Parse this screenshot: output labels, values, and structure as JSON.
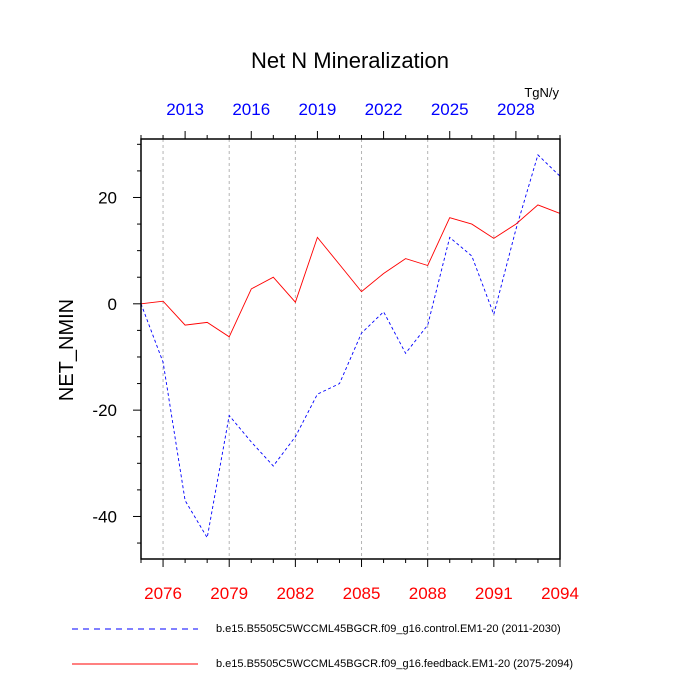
{
  "chart_data": {
    "type": "line",
    "title": "Net N Mineralization",
    "units": "TgN/y",
    "ylabel": "NET_NMIN",
    "ylim": [
      -48,
      31
    ],
    "yticks": [
      -40,
      -20,
      0,
      20
    ],
    "colors": {
      "control": "#0000ff",
      "feedback": "#ff0000"
    },
    "bottom_axis": {
      "range": [
        2075,
        2094
      ],
      "ticks": [
        2076,
        2079,
        2082,
        2085,
        2088,
        2091,
        2094
      ],
      "tick_labels": [
        "2076",
        "2079",
        "2082",
        "2085",
        "2088",
        "2091",
        "2094"
      ],
      "color": "#ff0000"
    },
    "top_axis": {
      "range": [
        2011,
        2030
      ],
      "ticks": [
        2013,
        2016,
        2019,
        2022,
        2025,
        2028
      ],
      "tick_labels": [
        "2013",
        "2016",
        "2019",
        "2022",
        "2025",
        "2028"
      ],
      "color": "#0000ff"
    },
    "series": [
      {
        "name": "control",
        "axis": "top",
        "style": "dashed",
        "color": "#0000ff",
        "x": [
          2011,
          2012,
          2013,
          2014,
          2015,
          2016,
          2017,
          2018,
          2019,
          2020,
          2021,
          2022,
          2023,
          2024,
          2025,
          2026,
          2027,
          2028,
          2029,
          2030
        ],
        "values": [
          0,
          -11,
          -37,
          -44,
          -21,
          -26,
          -30.5,
          -25,
          -17,
          -15,
          -5.5,
          -1.5,
          -9.3,
          -4,
          12.5,
          9,
          -2,
          14,
          28,
          24
        ]
      },
      {
        "name": "feedback",
        "axis": "bottom",
        "style": "solid",
        "color": "#ff0000",
        "x": [
          2075,
          2076,
          2077,
          2078,
          2079,
          2080,
          2081,
          2082,
          2083,
          2084,
          2085,
          2086,
          2087,
          2088,
          2089,
          2090,
          2091,
          2092,
          2093,
          2094
        ],
        "values": [
          0,
          0.5,
          -4,
          -3.5,
          -6.2,
          2.8,
          5,
          0.3,
          12.5,
          7.4,
          2.3,
          5.7,
          8.5,
          7.2,
          16.2,
          15,
          12.3,
          15,
          18.6,
          17
        ]
      }
    ],
    "legend": [
      {
        "series": "control",
        "label": "b.e15.B5505C5WCCML45BGCR.f09_g16.control.EM1-20 (2011-2030)"
      },
      {
        "series": "feedback",
        "label": "b.e15.B5505C5WCCML45BGCR.f09_g16.feedback.EM1-20 (2075-2094)"
      }
    ],
    "grid": "vertical-dashed-at-ticks"
  }
}
